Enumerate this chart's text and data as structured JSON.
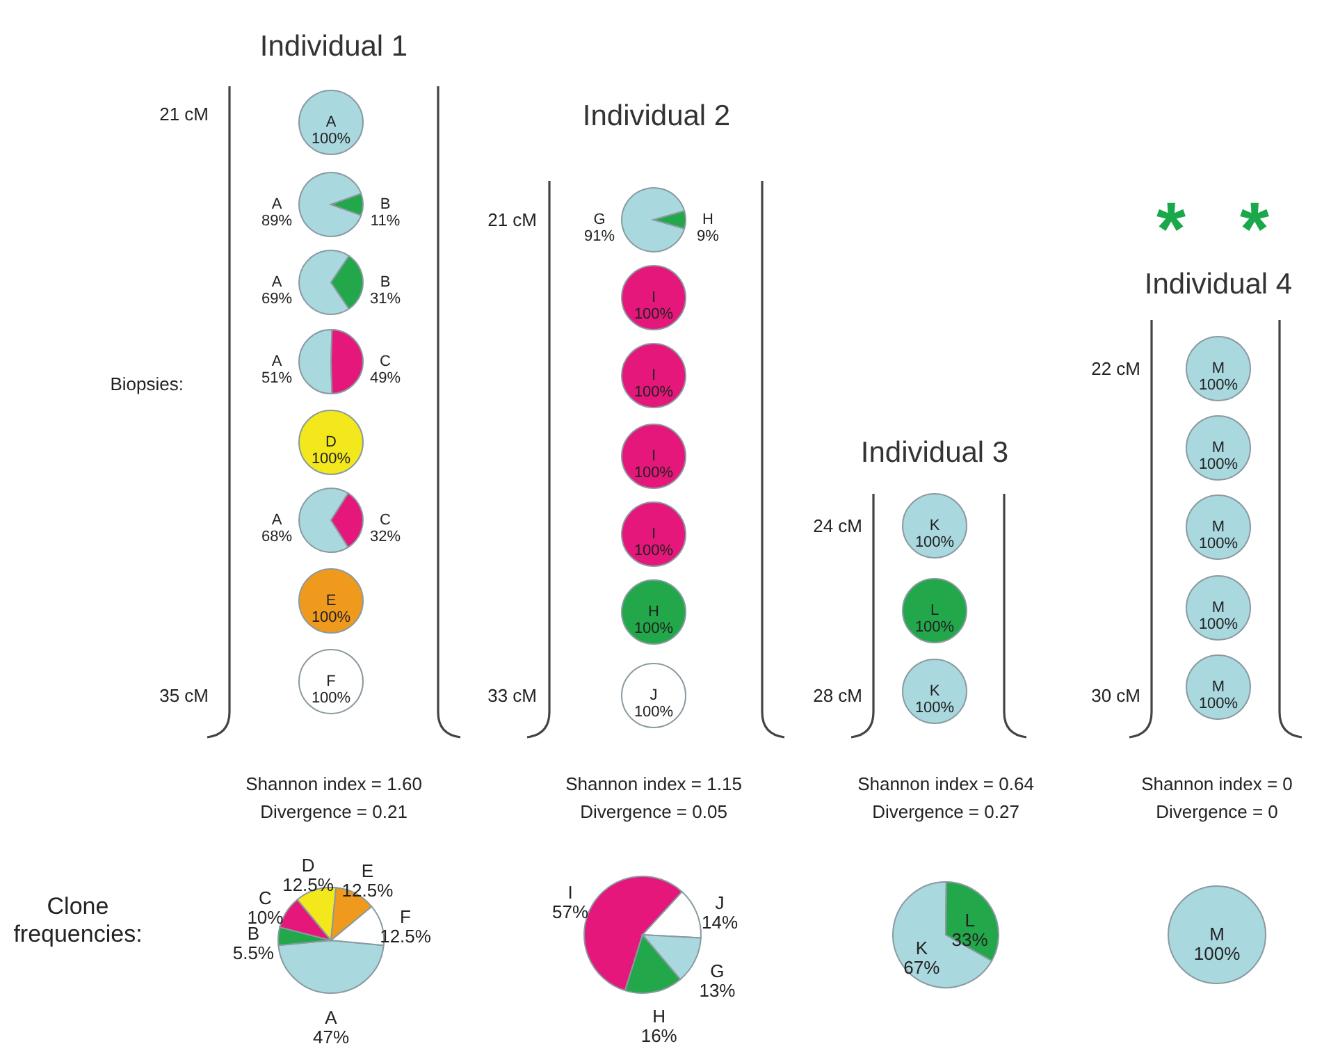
{
  "chart_data": [
    {
      "type": "pie",
      "title": "Individual 1",
      "annotations": [
        "21 cM"
      ],
      "categories": [
        "A"
      ],
      "values": [
        100
      ],
      "colors": [
        "#a9d8df"
      ],
      "value_labels": [
        "100%"
      ]
    },
    {
      "type": "pie",
      "categories": [
        "A",
        "B"
      ],
      "values": [
        89,
        11
      ],
      "colors": [
        "#a9d8df",
        "#22a84a"
      ],
      "value_labels": [
        "89%",
        "11%"
      ]
    },
    {
      "type": "pie",
      "categories": [
        "A",
        "B"
      ],
      "values": [
        69,
        31
      ],
      "colors": [
        "#a9d8df",
        "#22a84a"
      ],
      "value_labels": [
        "69%",
        "31%"
      ]
    },
    {
      "type": "pie",
      "annotations": [
        "Biopsies:"
      ],
      "categories": [
        "A",
        "C"
      ],
      "values": [
        51,
        49
      ],
      "colors": [
        "#a9d8df",
        "#e5177b"
      ],
      "value_labels": [
        "51%",
        "49%"
      ]
    },
    {
      "type": "pie",
      "categories": [
        "D"
      ],
      "values": [
        100
      ],
      "colors": [
        "#f3e81c"
      ],
      "value_labels": [
        "100%"
      ]
    },
    {
      "type": "pie",
      "categories": [
        "A",
        "C"
      ],
      "values": [
        68,
        32
      ],
      "colors": [
        "#a9d8df",
        "#e5177b"
      ],
      "value_labels": [
        "68%",
        "32%"
      ]
    },
    {
      "type": "pie",
      "categories": [
        "E"
      ],
      "values": [
        100
      ],
      "colors": [
        "#f09a1d"
      ],
      "value_labels": [
        "100%"
      ]
    },
    {
      "type": "pie",
      "annotations": [
        "35 cM"
      ],
      "categories": [
        "F"
      ],
      "values": [
        100
      ],
      "colors": [
        "#ffffff"
      ],
      "value_labels": [
        "100%"
      ]
    },
    {
      "type": "pie",
      "annotations": [
        "Shannon index = 1.60",
        "Divergence = 0.21",
        "Clone frequencies:"
      ],
      "categories": [
        "A",
        "B",
        "C",
        "D",
        "E",
        "F"
      ],
      "values": [
        47,
        5.5,
        10,
        12.5,
        12.5,
        12.5
      ],
      "colors": [
        "#a9d8df",
        "#22a84a",
        "#e5177b",
        "#f3e81c",
        "#f09a1d",
        "#ffffff"
      ],
      "value_labels": [
        "47%",
        "5.5%",
        "10%",
        "12.5%",
        "12.5%",
        "12.5%"
      ]
    },
    {
      "type": "pie",
      "title": "Individual 2",
      "annotations": [
        "21 cM"
      ],
      "categories": [
        "G",
        "H"
      ],
      "values": [
        91,
        9
      ],
      "colors": [
        "#a9d8df",
        "#22a84a"
      ],
      "value_labels": [
        "91%",
        "9%"
      ]
    },
    {
      "type": "pie",
      "categories": [
        "I"
      ],
      "values": [
        100
      ],
      "colors": [
        "#e5177b"
      ],
      "value_labels": [
        "100%"
      ]
    },
    {
      "type": "pie",
      "categories": [
        "I"
      ],
      "values": [
        100
      ],
      "colors": [
        "#e5177b"
      ],
      "value_labels": [
        "100%"
      ]
    },
    {
      "type": "pie",
      "categories": [
        "I"
      ],
      "values": [
        100
      ],
      "colors": [
        "#e5177b"
      ],
      "value_labels": [
        "100%"
      ]
    },
    {
      "type": "pie",
      "categories": [
        "I"
      ],
      "values": [
        100
      ],
      "colors": [
        "#e5177b"
      ],
      "value_labels": [
        "100%"
      ]
    },
    {
      "type": "pie",
      "categories": [
        "H"
      ],
      "values": [
        100
      ],
      "colors": [
        "#22a84a"
      ],
      "value_labels": [
        "100%"
      ]
    },
    {
      "type": "pie",
      "annotations": [
        "33 cM"
      ],
      "categories": [
        "J"
      ],
      "values": [
        100
      ],
      "colors": [
        "#ffffff"
      ],
      "value_labels": [
        "100%"
      ]
    },
    {
      "type": "pie",
      "annotations": [
        "Shannon index = 1.15",
        "Divergence = 0.05"
      ],
      "categories": [
        "I",
        "J",
        "G",
        "H"
      ],
      "values": [
        57,
        14,
        13,
        16
      ],
      "colors": [
        "#e5177b",
        "#ffffff",
        "#a9d8df",
        "#22a84a"
      ],
      "value_labels": [
        "57%",
        "14%",
        "13%",
        "16%"
      ]
    },
    {
      "type": "pie",
      "title": "Individual 3",
      "annotations": [
        "24 cM"
      ],
      "categories": [
        "K"
      ],
      "values": [
        100
      ],
      "colors": [
        "#a9d8df"
      ],
      "value_labels": [
        "100%"
      ]
    },
    {
      "type": "pie",
      "categories": [
        "L"
      ],
      "values": [
        100
      ],
      "colors": [
        "#22a84a"
      ],
      "value_labels": [
        "100%"
      ]
    },
    {
      "type": "pie",
      "annotations": [
        "28 cM"
      ],
      "categories": [
        "K"
      ],
      "values": [
        100
      ],
      "colors": [
        "#a9d8df"
      ],
      "value_labels": [
        "100%"
      ]
    },
    {
      "type": "pie",
      "annotations": [
        "Shannon index = 0.64",
        "Divergence = 0.27"
      ],
      "categories": [
        "K",
        "L"
      ],
      "values": [
        67,
        33
      ],
      "colors": [
        "#a9d8df",
        "#22a84a"
      ],
      "value_labels": [
        "67%",
        "33%"
      ]
    },
    {
      "type": "pie",
      "title": "Individual 4",
      "annotations": [
        "* *",
        "22 cM"
      ],
      "categories": [
        "M"
      ],
      "values": [
        100
      ],
      "colors": [
        "#a9d8df"
      ],
      "value_labels": [
        "100%"
      ]
    },
    {
      "type": "pie",
      "categories": [
        "M"
      ],
      "values": [
        100
      ],
      "colors": [
        "#a9d8df"
      ],
      "value_labels": [
        "100%"
      ]
    },
    {
      "type": "pie",
      "categories": [
        "M"
      ],
      "values": [
        100
      ],
      "colors": [
        "#a9d8df"
      ],
      "value_labels": [
        "100%"
      ]
    },
    {
      "type": "pie",
      "categories": [
        "M"
      ],
      "values": [
        100
      ],
      "colors": [
        "#a9d8df"
      ],
      "value_labels": [
        "100%"
      ]
    },
    {
      "type": "pie",
      "annotations": [
        "30 cM"
      ],
      "categories": [
        "M"
      ],
      "values": [
        100
      ],
      "colors": [
        "#a9d8df"
      ],
      "value_labels": [
        "100%"
      ]
    },
    {
      "type": "pie",
      "annotations": [
        "Shannon index = 0",
        "Divergence = 0"
      ],
      "categories": [
        "M"
      ],
      "values": [
        100
      ],
      "colors": [
        "#a9d8df"
      ],
      "value_labels": [
        "100%"
      ]
    }
  ]
}
